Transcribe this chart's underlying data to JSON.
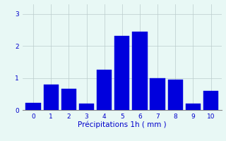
{
  "categories": [
    0,
    1,
    2,
    3,
    4,
    5,
    6,
    7,
    8,
    9,
    10
  ],
  "values": [
    0.22,
    0.8,
    0.65,
    0.2,
    1.25,
    2.3,
    2.45,
    1.0,
    0.95,
    0.2,
    0.6
  ],
  "bar_color": "#0000dd",
  "bar_edge_color": "#0000dd",
  "background_color": "#e8f8f5",
  "grid_color": "#bbcccc",
  "text_color": "#0000cc",
  "xlabel": "Précipitations 1h ( mm )",
  "ylim": [
    0,
    3.3
  ],
  "yticks": [
    0,
    1,
    2,
    3
  ],
  "xlim": [
    -0.6,
    10.6
  ],
  "bar_width": 0.85
}
